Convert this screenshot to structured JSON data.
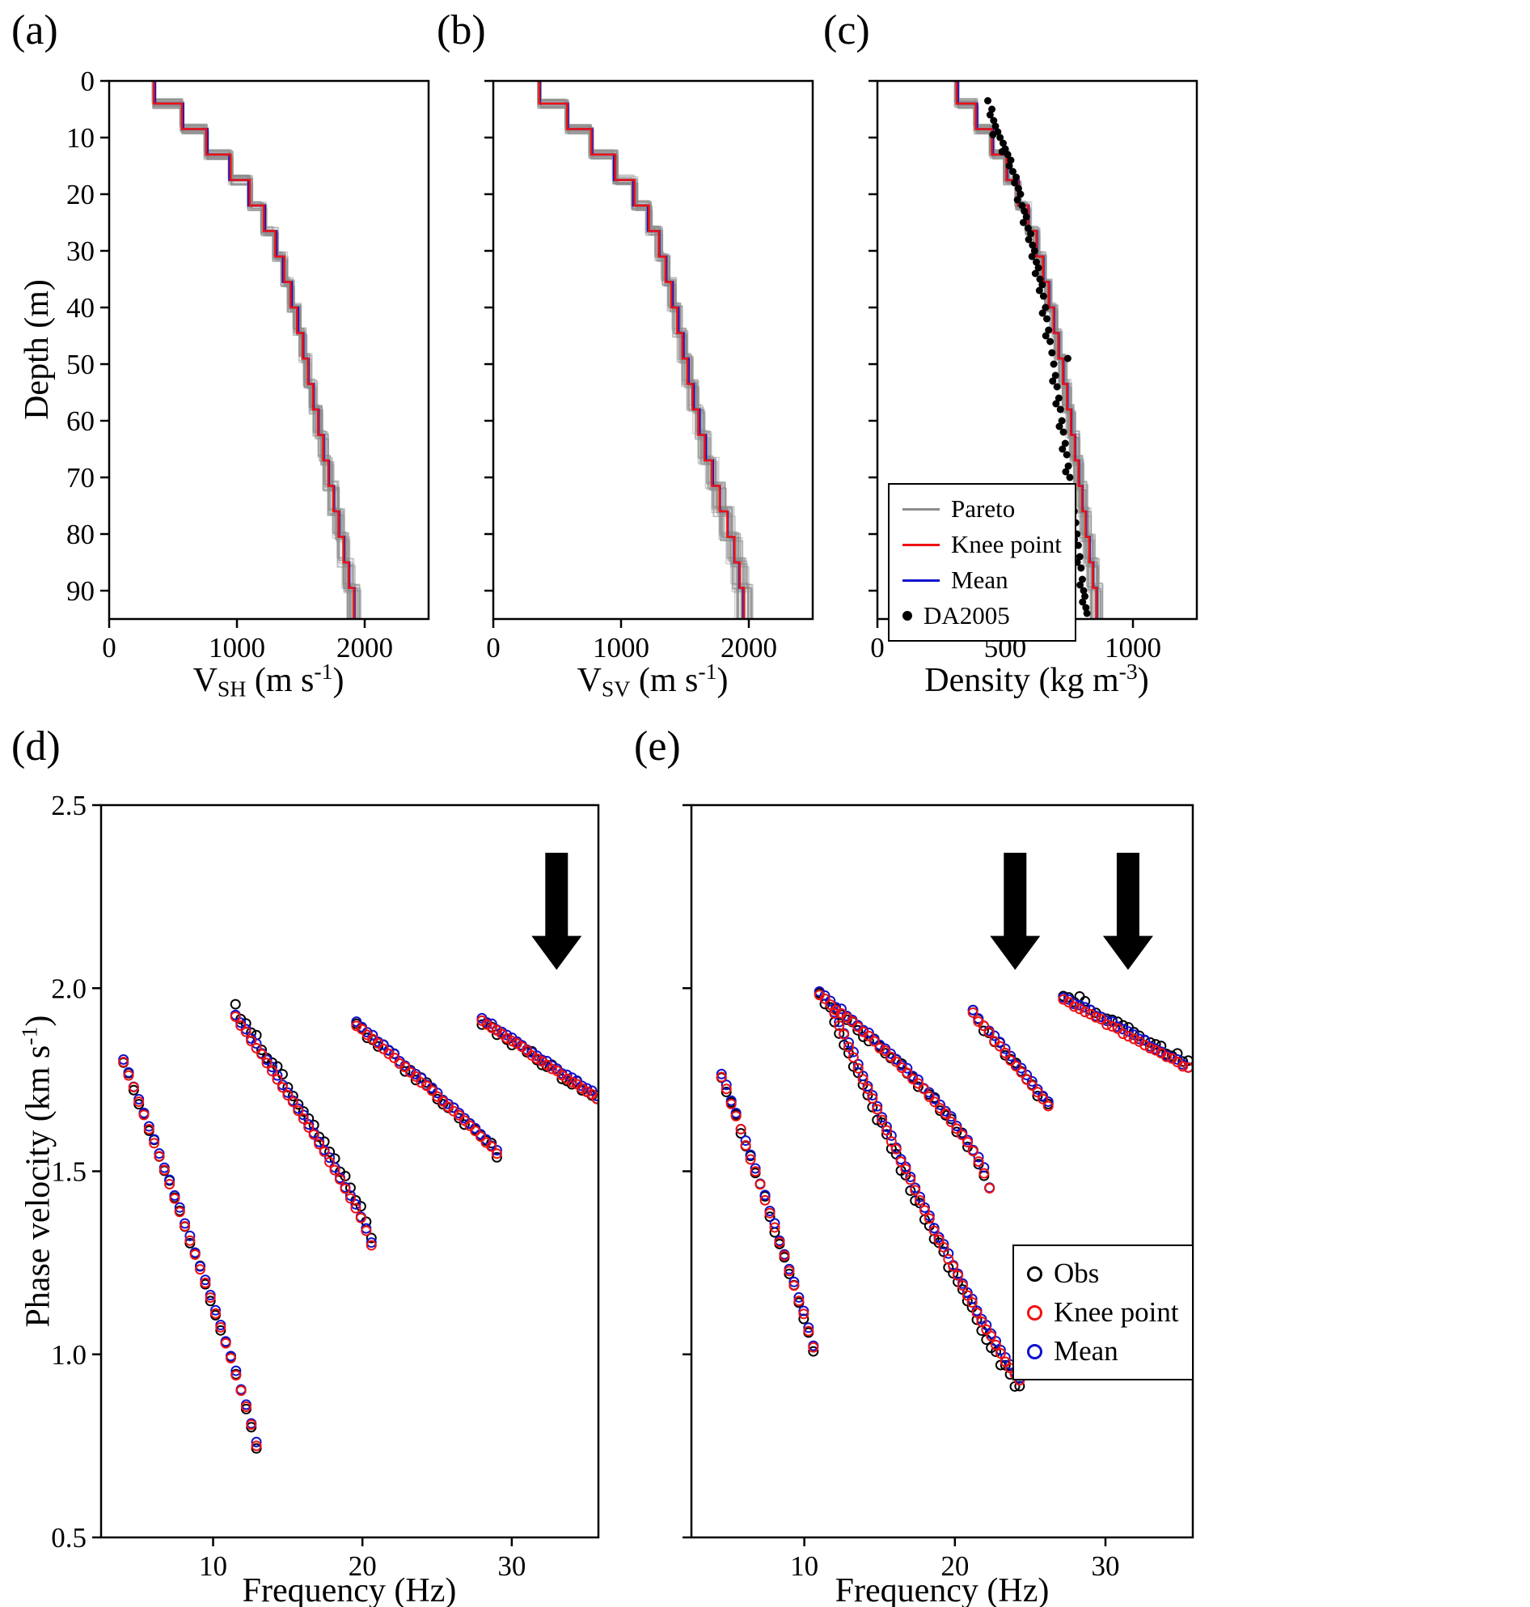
{
  "chart_data": [
    {
      "letter": "(a)",
      "type": "line",
      "kind": "profile",
      "xlim": [
        0,
        2500
      ],
      "xticks": [
        0,
        1000,
        2000
      ],
      "xtick_labels": [
        "0",
        "1000",
        "2000"
      ],
      "ylim": [
        0,
        95
      ],
      "yticks": [
        0,
        10,
        20,
        30,
        40,
        50,
        60,
        70,
        80,
        90
      ],
      "ytick_labels": [
        "0",
        "10",
        "20",
        "30",
        "40",
        "50",
        "60",
        "70",
        "80",
        "90"
      ],
      "ylabel": "Depth (m)",
      "xlabel_parts": [
        {
          "t": "V"
        },
        {
          "t": "SH",
          "s": "sub"
        },
        {
          "t": " (m s"
        },
        {
          "t": "-1",
          "s": "sup"
        },
        {
          "t": ")"
        }
      ],
      "layer_depths": [
        0,
        4,
        8.5,
        13,
        17.5,
        22,
        26.5,
        31,
        35.5,
        40,
        44.5,
        49,
        53.5,
        58,
        62.5,
        67,
        71.5,
        76,
        80.5,
        85,
        89.5,
        95
      ],
      "series": [
        {
          "name": "Mean",
          "color": "#1111cc",
          "values": [
            360,
            580,
            770,
            940,
            1090,
            1220,
            1310,
            1360,
            1430,
            1480,
            1520,
            1560,
            1600,
            1640,
            1680,
            1720,
            1760,
            1800,
            1840,
            1880,
            1920
          ]
        },
        {
          "name": "Knee point",
          "color": "#ee1111",
          "values": [
            350,
            570,
            760,
            950,
            1100,
            1210,
            1300,
            1370,
            1420,
            1470,
            1515,
            1555,
            1595,
            1635,
            1675,
            1715,
            1755,
            1795,
            1835,
            1875,
            1915
          ]
        }
      ],
      "pareto": {
        "name": "Pareto",
        "count": 40,
        "color": "#8c8c8c",
        "opacity": 0.45,
        "spread_top": 15,
        "spread_bottom": 55,
        "depth_jitter": 0.9
      }
    },
    {
      "letter": "(b)",
      "type": "line",
      "kind": "profile",
      "xlim": [
        0,
        2500
      ],
      "xticks": [
        0,
        1000,
        2000
      ],
      "xtick_labels": [
        "0",
        "1000",
        "2000"
      ],
      "ylim": [
        0,
        95
      ],
      "yticks": [
        0,
        10,
        20,
        30,
        40,
        50,
        60,
        70,
        80,
        90
      ],
      "xlabel_parts": [
        {
          "t": "V"
        },
        {
          "t": "SV",
          "s": "sub"
        },
        {
          "t": " (m s"
        },
        {
          "t": "-1",
          "s": "sup"
        },
        {
          "t": ")"
        }
      ],
      "layer_depths": [
        0,
        4,
        8.5,
        13,
        17.5,
        22,
        26.5,
        31,
        35.5,
        40,
        44.5,
        49,
        53.5,
        58,
        62.5,
        67,
        71.5,
        76,
        80.5,
        85,
        89.5,
        95
      ],
      "series": [
        {
          "name": "Mean",
          "color": "#1111cc",
          "values": [
            365,
            585,
            775,
            945,
            1095,
            1210,
            1300,
            1355,
            1405,
            1450,
            1490,
            1530,
            1570,
            1615,
            1665,
            1720,
            1775,
            1835,
            1885,
            1925,
            1955
          ]
        },
        {
          "name": "Knee point",
          "color": "#ee1111",
          "values": [
            360,
            578,
            768,
            955,
            1105,
            1218,
            1295,
            1348,
            1395,
            1440,
            1480,
            1520,
            1560,
            1605,
            1655,
            1712,
            1772,
            1832,
            1888,
            1930,
            1962
          ]
        }
      ],
      "pareto": {
        "name": "Pareto",
        "count": 40,
        "color": "#8c8c8c",
        "opacity": 0.45,
        "spread_top": 15,
        "spread_bottom": 75,
        "depth_jitter": 0.9
      }
    },
    {
      "letter": "(c)",
      "type": "line",
      "kind": "profile",
      "xlim": [
        0,
        1250
      ],
      "xticks": [
        0,
        500,
        1000
      ],
      "xtick_labels": [
        "0",
        "500",
        "1000"
      ],
      "ylim": [
        0,
        95
      ],
      "yticks": [
        0,
        10,
        20,
        30,
        40,
        50,
        60,
        70,
        80,
        90
      ],
      "xlabel_parts": [
        {
          "t": "Density (kg m"
        },
        {
          "t": "-3",
          "s": "sup"
        },
        {
          "t": ")"
        }
      ],
      "layer_depths": [
        0,
        4,
        8.5,
        13,
        17.5,
        22,
        26.5,
        31,
        35.5,
        40,
        44.5,
        49,
        53.5,
        58,
        62.5,
        67,
        71.5,
        76,
        80.5,
        85,
        89.5,
        95
      ],
      "series": [
        {
          "name": "Mean",
          "color": "#1111cc",
          "values": [
            315,
            390,
            452,
            508,
            553,
            592,
            624,
            650,
            672,
            692,
            710,
            728,
            744,
            759,
            774,
            789,
            803,
            817,
            831,
            845,
            859
          ]
        },
        {
          "name": "Knee point",
          "color": "#ee1111",
          "values": [
            310,
            385,
            448,
            505,
            550,
            590,
            622,
            648,
            670,
            690,
            708,
            726,
            742,
            757,
            772,
            787,
            801,
            815,
            829,
            843,
            857
          ]
        }
      ],
      "pareto": {
        "name": "Pareto",
        "count": 40,
        "color": "#8c8c8c",
        "opacity": 0.45,
        "spread_top": 10,
        "spread_bottom": 26,
        "depth_jitter": 0.9
      },
      "scatter": {
        "name": "DA2005",
        "color": "#000000",
        "radius": 4.5,
        "points": [
          [
            432,
            3.5
          ],
          [
            448,
            5
          ],
          [
            441,
            6
          ],
          [
            455,
            7
          ],
          [
            462,
            8
          ],
          [
            471,
            9
          ],
          [
            452,
            9.5
          ],
          [
            480,
            10
          ],
          [
            492,
            11
          ],
          [
            500,
            12
          ],
          [
            488,
            12.5
          ],
          [
            510,
            13
          ],
          [
            522,
            14
          ],
          [
            516,
            15
          ],
          [
            530,
            16
          ],
          [
            543,
            17
          ],
          [
            537,
            18
          ],
          [
            552,
            19
          ],
          [
            560,
            20
          ],
          [
            548,
            21
          ],
          [
            566,
            22
          ],
          [
            575,
            23
          ],
          [
            583,
            24
          ],
          [
            571,
            25
          ],
          [
            590,
            26
          ],
          [
            600,
            27
          ],
          [
            592,
            28
          ],
          [
            607,
            29
          ],
          [
            615,
            30
          ],
          [
            605,
            31
          ],
          [
            622,
            32
          ],
          [
            630,
            33
          ],
          [
            618,
            34
          ],
          [
            636,
            35
          ],
          [
            645,
            36
          ],
          [
            634,
            37
          ],
          [
            650,
            38
          ],
          [
            658,
            40
          ],
          [
            646,
            41
          ],
          [
            663,
            42
          ],
          [
            670,
            44
          ],
          [
            659,
            45
          ],
          [
            676,
            46
          ],
          [
            683,
            48
          ],
          [
            745,
            49
          ],
          [
            690,
            50
          ],
          [
            697,
            52
          ],
          [
            686,
            53
          ],
          [
            703,
            54
          ],
          [
            710,
            56
          ],
          [
            699,
            57
          ],
          [
            716,
            58
          ],
          [
            722,
            60
          ],
          [
            712,
            61
          ],
          [
            728,
            62
          ],
          [
            735,
            64
          ],
          [
            724,
            65
          ],
          [
            741,
            66
          ],
          [
            747,
            68
          ],
          [
            737,
            69
          ],
          [
            753,
            70
          ],
          [
            759,
            72
          ],
          [
            749,
            73
          ],
          [
            764,
            74
          ],
          [
            770,
            76
          ],
          [
            760,
            77
          ],
          [
            776,
            78
          ],
          [
            781,
            80
          ],
          [
            771,
            81
          ],
          [
            786,
            82
          ],
          [
            792,
            84
          ],
          [
            782,
            85
          ],
          [
            797,
            86
          ],
          [
            802,
            88
          ],
          [
            793,
            89
          ],
          [
            807,
            90
          ],
          [
            812,
            91
          ],
          [
            803,
            92
          ],
          [
            816,
            93
          ],
          [
            820,
            94
          ]
        ]
      },
      "legend": {
        "entries": [
          {
            "label": "Pareto",
            "marker": "line",
            "color": "#8c8c8c"
          },
          {
            "label": "Knee point",
            "marker": "line",
            "color": "#ee1111"
          },
          {
            "label": "Mean",
            "marker": "line",
            "color": "#1111cc"
          },
          {
            "label": "DA2005",
            "marker": "dot",
            "color": "#000000"
          }
        ]
      }
    },
    {
      "letter": "(d)",
      "type": "scatter",
      "kind": "dispersion",
      "xlim": [
        2.5,
        35.8
      ],
      "xticks": [
        10,
        20,
        30
      ],
      "xtick_labels": [
        "10",
        "20",
        "30"
      ],
      "ylim": [
        0.5,
        2.5
      ],
      "yticks": [
        0.5,
        1.0,
        1.5,
        2.0,
        2.5
      ],
      "ytick_labels": [
        "0.5",
        "1.0",
        "1.5",
        "2.0",
        "2.5"
      ],
      "xlabel": "Frequency (Hz)",
      "ylabel_parts": [
        {
          "t": "Phase velocity (km s"
        },
        {
          "t": "-1",
          "s": "sup"
        },
        {
          "t": ")"
        }
      ],
      "series": [
        {
          "name": "Obs",
          "color": "#000000",
          "jitter": 0.012,
          "offset": 0
        },
        {
          "name": "Mean",
          "color": "#1111cc",
          "jitter": 0.004,
          "offset": 0.007
        },
        {
          "name": "Knee point",
          "color": "#ee1111",
          "jitter": 0.003,
          "offset": 0
        }
      ],
      "branches": [
        {
          "f_start": 4.0,
          "f_end": 12.9,
          "v_start": 1.8,
          "v_end": 0.75,
          "power": 0.9,
          "n": 27,
          "obs_dv": 0
        },
        {
          "f_start": 11.5,
          "f_end": 20.6,
          "v_start": 1.92,
          "v_end": 1.3,
          "power": 0.85,
          "n": 27,
          "obs_dv": 0.025
        },
        {
          "f_start": 19.6,
          "f_end": 29.0,
          "v_start": 1.9,
          "v_end": 1.55,
          "power": 0.95,
          "n": 27,
          "obs_dv": 0
        },
        {
          "f_start": 28.0,
          "f_end": 35.7,
          "v_start": 1.91,
          "v_end": 1.7,
          "power": 1.0,
          "n": 24,
          "obs_dv": 0
        }
      ],
      "arrows": [
        {
          "f": 33.0,
          "v_top": 2.37,
          "v_tip": 2.05
        }
      ]
    },
    {
      "letter": "(e)",
      "type": "scatter",
      "kind": "dispersion",
      "xlim": [
        2.5,
        35.8
      ],
      "xticks": [
        10,
        20,
        30
      ],
      "xtick_labels": [
        "10",
        "20",
        "30"
      ],
      "ylim": [
        0.5,
        2.5
      ],
      "yticks": [
        0.5,
        1.0,
        1.5,
        2.0,
        2.5
      ],
      "xlabel": "Frequency (Hz)",
      "series": [
        {
          "name": "Obs",
          "color": "#000000",
          "jitter": 0.013,
          "offset": 0
        },
        {
          "name": "Mean",
          "color": "#1111cc",
          "jitter": 0.005,
          "offset": 0.008
        },
        {
          "name": "Knee point",
          "color": "#ee1111",
          "jitter": 0.004,
          "offset": 0
        }
      ],
      "branches": [
        {
          "f_start": 4.5,
          "f_end": 10.6,
          "v_start": 1.76,
          "v_end": 1.02,
          "power": 0.95,
          "n": 20,
          "obs_dv": 0
        },
        {
          "f_start": 11.0,
          "f_end": 22.3,
          "v_start": 1.98,
          "v_end": 1.45,
          "power": 0.7,
          "n": 32,
          "obs_dv": 0
        },
        {
          "f_start": 12.0,
          "f_end": 24.3,
          "v_start": 1.93,
          "v_end": 0.93,
          "power": 1.15,
          "n": 40,
          "obs_dv": -0.02
        },
        {
          "f_start": 21.2,
          "f_end": 26.2,
          "v_start": 1.93,
          "v_end": 1.68,
          "power": 1.0,
          "n": 15,
          "obs_dv": 0
        },
        {
          "f_start": 27.2,
          "f_end": 35.5,
          "v_start": 1.97,
          "v_end": 1.78,
          "power": 1.0,
          "n": 24,
          "obs_dv": 0.02
        }
      ],
      "arrows": [
        {
          "f": 24.0,
          "v_top": 2.37,
          "v_tip": 2.05
        },
        {
          "f": 31.5,
          "v_top": 2.37,
          "v_tip": 2.05
        }
      ],
      "legend": {
        "entries": [
          {
            "label": "Obs",
            "marker": "circle",
            "color": "#000000"
          },
          {
            "label": "Knee point",
            "marker": "circle",
            "color": "#ee1111"
          },
          {
            "label": "Mean",
            "marker": "circle",
            "color": "#1111cc"
          }
        ]
      }
    }
  ]
}
